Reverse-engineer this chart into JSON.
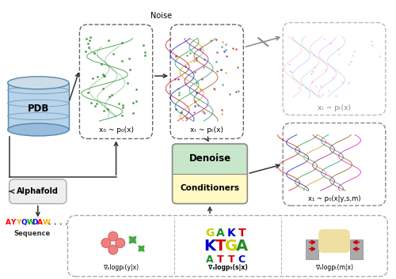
{
  "fig_width": 5.0,
  "fig_height": 3.53,
  "dpi": 100,
  "bg_color": "#ffffff",
  "pdb_label": "PDB",
  "alphafold_label": "Alphafold",
  "sequence_label": "Sequence",
  "noise_label": "Noise",
  "denoise_label": "Denoise",
  "conditioners_label": "Conditioners",
  "x0_label": "x₀ ~ p₀(x)",
  "xT_label": "xₜ ~ pₜ(x)",
  "xT2_label": "xₜ ~ pₜ(x)",
  "x1_label": "x₁ ~ p₀(x|y,s,m)",
  "grad1_label": "∇ₓlogpₜ(y|x)",
  "grad2_label": "∇ₓlogpₜ(s|x)",
  "grad3_label": "∇ₓlogpₜ(m|x)",
  "denoise_color": "#c8e6c9",
  "conditioners_color": "#fff9c4",
  "seq_letters": [
    "A",
    "Y",
    "Y",
    "Q",
    "W",
    "D",
    "A",
    "W",
    ".",
    ".",
    ".",
    "."
  ],
  "seq_colors": [
    "#ff0000",
    "#ff0000",
    "#ffaa00",
    "#0000ff",
    "#00aa00",
    "#0000ff",
    "#ff0000",
    "#ffaa00",
    "#000000",
    "#000000",
    "#000000",
    "#000000"
  ],
  "logo_rows": [
    [
      "G",
      "A",
      "K",
      "T"
    ],
    [
      "K",
      "T",
      "G",
      "A"
    ],
    [
      "A",
      "T",
      "T",
      "C"
    ]
  ],
  "logo_colors": [
    [
      "#cccc00",
      "#228B22",
      "#0000cc",
      "#cc0000"
    ],
    [
      "#0000cc",
      "#cc0000",
      "#cccc00",
      "#228B22"
    ],
    [
      "#228B22",
      "#cc0000",
      "#cc0000",
      "#0000cc"
    ]
  ],
  "logo_sizes": [
    10,
    14,
    9
  ]
}
